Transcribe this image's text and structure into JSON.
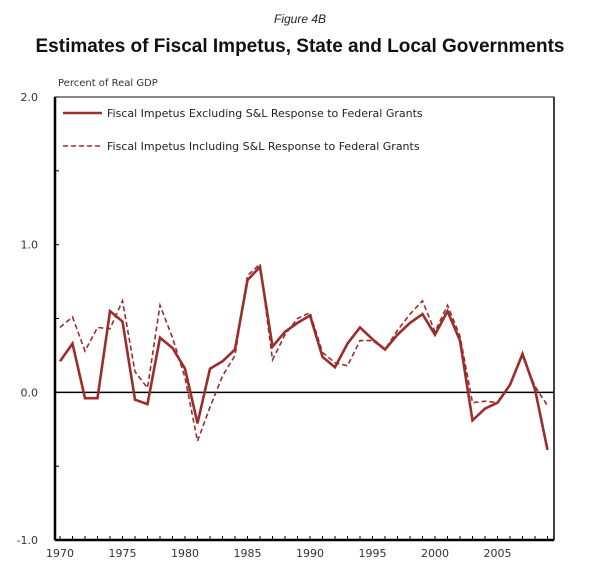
{
  "figure_label": "Figure 4B",
  "chart_data": {
    "type": "line",
    "title": "Estimates of Fiscal Impetus, State and Local Governments",
    "subtitle": "Figure 4B",
    "xlabel": "",
    "ylabel": "Percent of Real GDP",
    "xlim": [
      1970,
      2009
    ],
    "ylim": [
      -1.0,
      2.0
    ],
    "x_tick_labels": [
      "1970",
      "1975",
      "1980",
      "1985",
      "1990",
      "1995",
      "2000",
      "2005"
    ],
    "y_tick_labels": [
      "2.0",
      "1.0",
      "0.0",
      "-1.0"
    ],
    "grid": false,
    "legend_position": "top-left",
    "line_color": "#9b2d2d",
    "x": [
      1970,
      1971,
      1972,
      1973,
      1974,
      1975,
      1976,
      1977,
      1978,
      1979,
      1980,
      1981,
      1982,
      1983,
      1984,
      1985,
      1986,
      1987,
      1988,
      1989,
      1990,
      1991,
      1992,
      1993,
      1994,
      1995,
      1996,
      1997,
      1998,
      1999,
      2000,
      2001,
      2002,
      2003,
      2004,
      2005,
      2006,
      2007,
      2008,
      2009
    ],
    "series": [
      {
        "name": "Fiscal Impetus Excluding S&L Response to Federal Grants",
        "style": "solid",
        "values": [
          0.21,
          0.33,
          -0.04,
          -0.04,
          0.55,
          0.48,
          -0.05,
          -0.08,
          0.37,
          0.3,
          0.16,
          -0.21,
          0.16,
          0.21,
          0.29,
          0.76,
          0.85,
          0.31,
          0.41,
          0.47,
          0.52,
          0.24,
          0.17,
          0.33,
          0.44,
          0.36,
          0.29,
          0.39,
          0.47,
          0.53,
          0.39,
          0.55,
          0.35,
          -0.19,
          -0.11,
          -0.07,
          0.05,
          0.26,
          0.02,
          -0.39
        ]
      },
      {
        "name": "Fiscal Impetus Including S&L Response to Federal Grants",
        "style": "dashed",
        "values": [
          0.44,
          0.51,
          0.28,
          0.44,
          0.43,
          0.62,
          0.14,
          0.03,
          0.59,
          0.37,
          0.1,
          -0.33,
          -0.1,
          0.11,
          0.25,
          0.79,
          0.87,
          0.22,
          0.39,
          0.5,
          0.54,
          0.27,
          0.2,
          0.18,
          0.35,
          0.35,
          0.29,
          0.42,
          0.53,
          0.62,
          0.41,
          0.59,
          0.38,
          -0.07,
          -0.06,
          -0.07,
          0.05,
          0.25,
          0.04,
          -0.09
        ]
      }
    ]
  }
}
